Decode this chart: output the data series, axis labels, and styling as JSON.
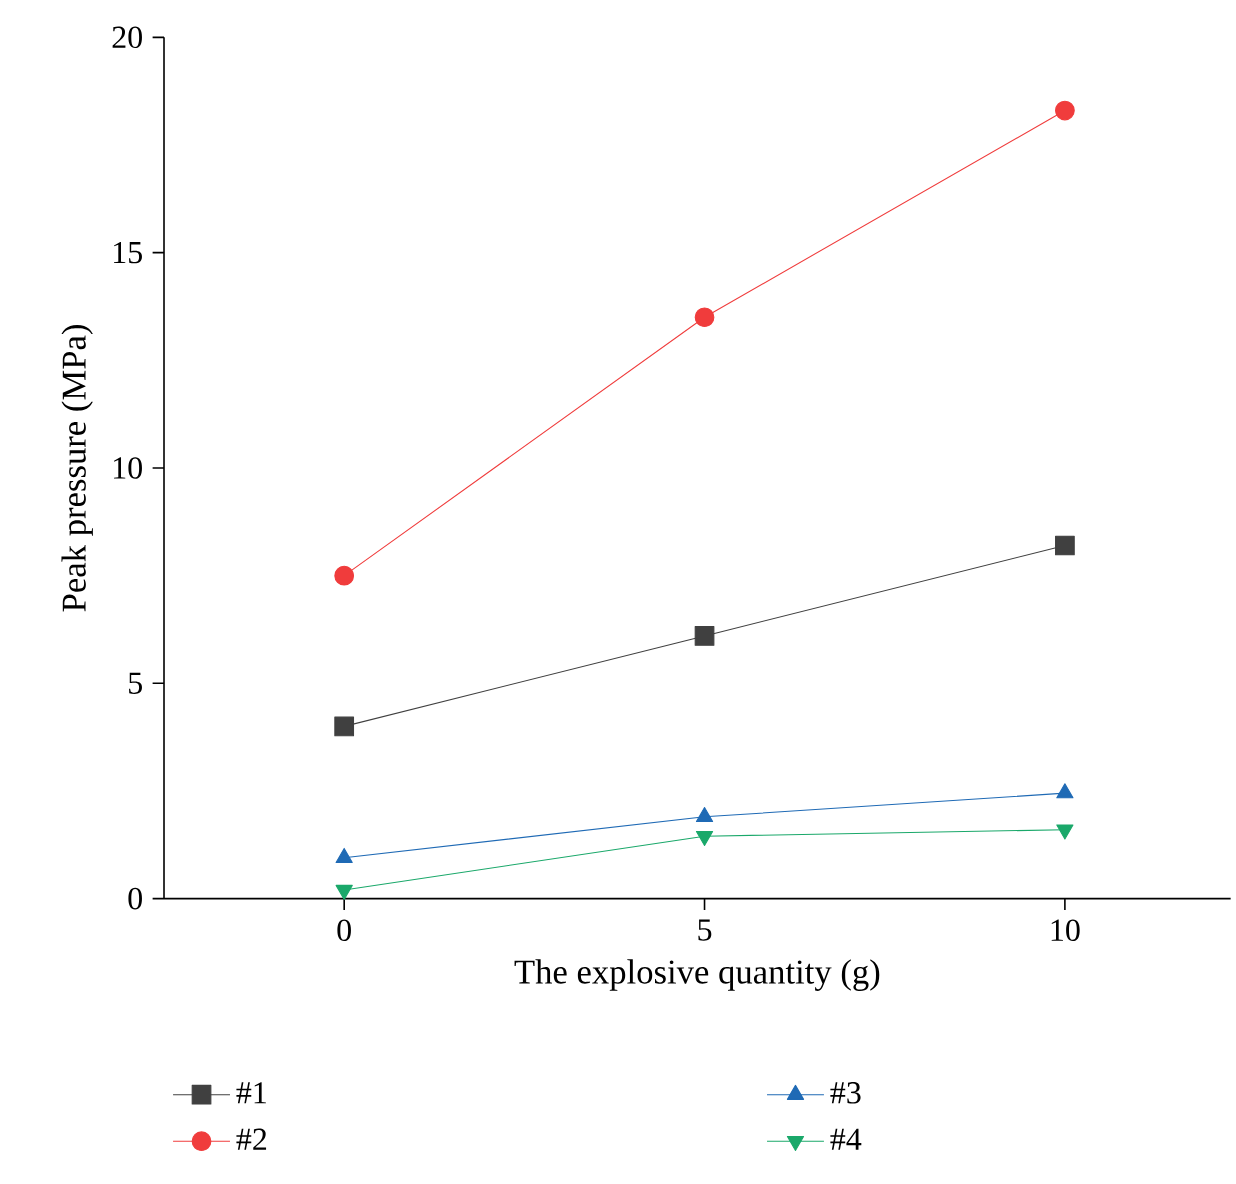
{
  "chart_data": {
    "type": "line",
    "xlabel": "The explosive quantity (g)",
    "ylabel": "Peak pressure (MPa)",
    "x": [
      0,
      5,
      10
    ],
    "xlim": [
      -2.5,
      12.3
    ],
    "xticks": [
      0,
      5,
      10
    ],
    "ylim": [
      0,
      20
    ],
    "yticks": [
      0,
      5,
      10,
      15,
      20
    ],
    "legend": "bottom",
    "grid": false,
    "line_style": "solid",
    "series": [
      {
        "name": "#1",
        "color": "#404040",
        "marker": "square",
        "values": [
          4.0,
          6.1,
          8.2
        ]
      },
      {
        "name": "#2",
        "color": "#f03c3c",
        "marker": "circle",
        "values": [
          7.5,
          13.5,
          18.3
        ]
      },
      {
        "name": "#3",
        "color": "#1f6ab5",
        "marker": "triangle",
        "values": [
          0.95,
          1.9,
          2.45
        ]
      },
      {
        "name": "#4",
        "color": "#1aa86a",
        "marker": "triangle down",
        "values": [
          0.2,
          1.45,
          1.6
        ]
      }
    ]
  }
}
